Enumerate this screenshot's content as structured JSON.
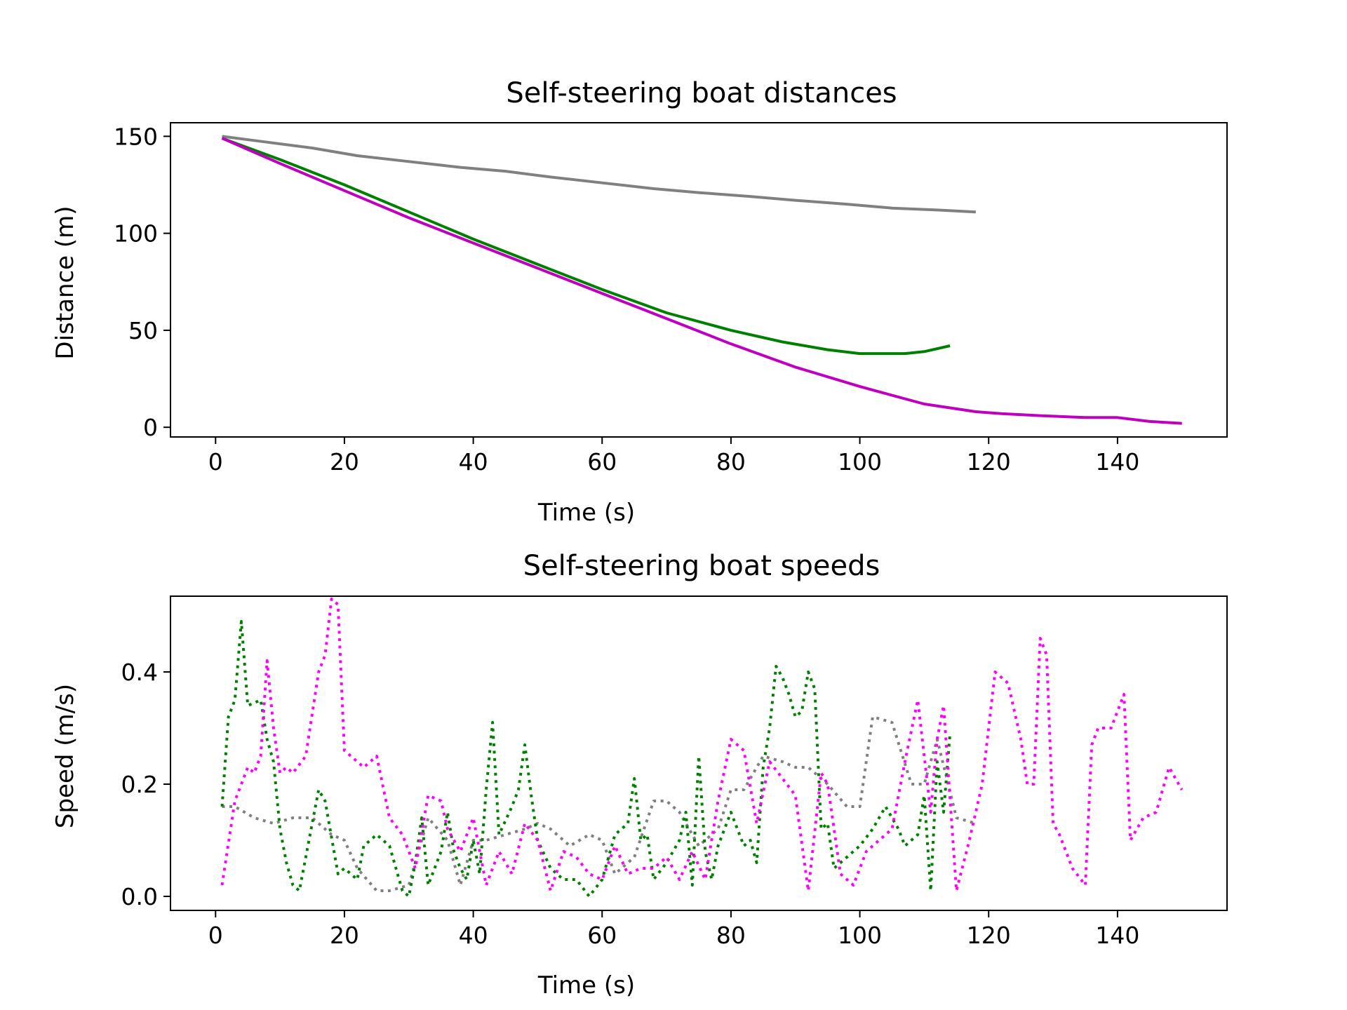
{
  "chart_data": [
    {
      "type": "line",
      "title": "Self-steering boat distances",
      "xlabel": "Time (s)",
      "ylabel": "Distance (m)",
      "xlim": [
        -7,
        157
      ],
      "ylim": [
        -5,
        157
      ],
      "xticks": [
        0,
        20,
        40,
        60,
        80,
        100,
        120,
        140
      ],
      "yticks": [
        0,
        50,
        100,
        150
      ],
      "grid": false,
      "series": [
        {
          "color": "#808080",
          "style": "solid",
          "x": [
            1,
            8,
            15,
            22,
            30,
            38,
            45,
            52,
            60,
            68,
            75,
            83,
            90,
            98,
            105,
            112,
            118
          ],
          "y": [
            150,
            147,
            144,
            140,
            137,
            134,
            132,
            129,
            126,
            123,
            121,
            119,
            117,
            115,
            113,
            112,
            111
          ]
        },
        {
          "color": "#008000",
          "style": "solid",
          "x": [
            1,
            10,
            20,
            30,
            40,
            50,
            60,
            70,
            80,
            88,
            95,
            100,
            103,
            107,
            110,
            114
          ],
          "y": [
            149,
            138,
            125,
            111,
            97,
            84,
            71,
            59,
            50,
            44,
            40,
            38,
            38,
            38,
            39,
            42
          ]
        },
        {
          "color": "#bf00bf",
          "style": "solid",
          "x": [
            1,
            10,
            20,
            30,
            40,
            50,
            60,
            70,
            80,
            90,
            100,
            110,
            118,
            122,
            128,
            135,
            140,
            145,
            150
          ],
          "y": [
            149,
            136,
            122,
            108,
            95,
            82,
            69,
            56,
            43,
            31,
            21,
            12,
            8,
            7,
            6,
            5,
            5,
            3,
            2
          ]
        }
      ]
    },
    {
      "type": "line",
      "title": "Self-steering boat speeds",
      "xlabel": "Time (s)",
      "ylabel": "Speed (m/s)",
      "xlim": [
        -7,
        157
      ],
      "ylim": [
        -0.025,
        0.535
      ],
      "xticks": [
        0,
        20,
        40,
        60,
        80,
        100,
        120,
        140
      ],
      "yticks": [
        0.0,
        0.2,
        0.4
      ],
      "ytick_labels": [
        "0.0",
        "0.2",
        "0.4"
      ],
      "grid": false,
      "series": [
        {
          "color": "#808080",
          "style": "dotted",
          "x": [
            1,
            3,
            6,
            9,
            12,
            15,
            18,
            20,
            22,
            25,
            27,
            30,
            33,
            36,
            38,
            40,
            42,
            45,
            48,
            50,
            52,
            55,
            58,
            60,
            62,
            65,
            68,
            70,
            72,
            75,
            78,
            80,
            82,
            85,
            88,
            90,
            92,
            95,
            98,
            100,
            102,
            105,
            108,
            110,
            112,
            115,
            118
          ],
          "y": [
            0.16,
            0.16,
            0.14,
            0.13,
            0.14,
            0.14,
            0.11,
            0.1,
            0.05,
            0.01,
            0.01,
            0.02,
            0.14,
            0.1,
            0.02,
            0.1,
            0.1,
            0.11,
            0.12,
            0.13,
            0.12,
            0.09,
            0.11,
            0.1,
            0.04,
            0.07,
            0.17,
            0.17,
            0.15,
            0.09,
            0.12,
            0.19,
            0.19,
            0.25,
            0.24,
            0.23,
            0.23,
            0.2,
            0.16,
            0.16,
            0.32,
            0.31,
            0.2,
            0.2,
            0.28,
            0.14,
            0.13
          ]
        },
        {
          "color": "#008000",
          "style": "dotted",
          "x": [
            1,
            2,
            3,
            4,
            5,
            7,
            8,
            9,
            10,
            11,
            12,
            13,
            15,
            16,
            17,
            19,
            20,
            22,
            23,
            25,
            27,
            29,
            30,
            31,
            32,
            33,
            35,
            36,
            37,
            38,
            39,
            40,
            41,
            42,
            43,
            44,
            46,
            47,
            48,
            49,
            50,
            52,
            54,
            56,
            58,
            60,
            62,
            64,
            65,
            66,
            67,
            68,
            70,
            72,
            73,
            74,
            75,
            76,
            77,
            78,
            80,
            82,
            83,
            84,
            85,
            86,
            87,
            88,
            89,
            90,
            91,
            92,
            93,
            94,
            95,
            96,
            97,
            99,
            100,
            102,
            104,
            106,
            107,
            108,
            109,
            110,
            111,
            112,
            113,
            114
          ],
          "y": [
            0.16,
            0.32,
            0.35,
            0.49,
            0.34,
            0.35,
            0.28,
            0.24,
            0.12,
            0.06,
            0.02,
            0.01,
            0.13,
            0.19,
            0.17,
            0.04,
            0.05,
            0.03,
            0.09,
            0.11,
            0.09,
            0.01,
            0.0,
            0.06,
            0.14,
            0.02,
            0.08,
            0.15,
            0.08,
            0.05,
            0.03,
            0.1,
            0.04,
            0.19,
            0.31,
            0.11,
            0.16,
            0.19,
            0.27,
            0.18,
            0.1,
            0.05,
            0.03,
            0.03,
            0.0,
            0.03,
            0.11,
            0.13,
            0.21,
            0.1,
            0.11,
            0.03,
            0.06,
            0.1,
            0.15,
            0.02,
            0.25,
            0.08,
            0.03,
            0.09,
            0.15,
            0.09,
            0.1,
            0.06,
            0.23,
            0.3,
            0.41,
            0.39,
            0.36,
            0.32,
            0.33,
            0.4,
            0.37,
            0.12,
            0.13,
            0.05,
            0.06,
            0.08,
            0.09,
            0.12,
            0.16,
            0.12,
            0.09,
            0.1,
            0.11,
            0.18,
            0.01,
            0.24,
            0.15,
            0.29
          ]
        },
        {
          "color": "#ff00ff",
          "style": "dotted",
          "x": [
            1,
            3,
            5,
            6,
            7,
            8,
            9,
            10,
            11,
            12,
            14,
            16,
            17,
            18,
            19,
            20,
            21,
            23,
            25,
            27,
            29,
            31,
            33,
            35,
            36,
            38,
            40,
            42,
            44,
            46,
            48,
            50,
            52,
            54,
            56,
            58,
            60,
            62,
            64,
            66,
            68,
            70,
            72,
            74,
            76,
            78,
            80,
            82,
            84,
            86,
            88,
            90,
            92,
            94,
            95,
            97,
            99,
            101,
            103,
            105,
            107,
            109,
            111,
            112,
            113,
            115,
            117,
            119,
            121,
            123,
            125,
            126,
            127,
            128,
            129,
            130,
            131,
            133,
            135,
            136,
            137,
            139,
            140,
            141,
            142,
            144,
            146,
            148,
            150
          ],
          "y": [
            0.02,
            0.17,
            0.23,
            0.22,
            0.25,
            0.42,
            0.3,
            0.22,
            0.23,
            0.22,
            0.25,
            0.4,
            0.43,
            0.53,
            0.52,
            0.26,
            0.25,
            0.23,
            0.25,
            0.14,
            0.11,
            0.05,
            0.18,
            0.17,
            0.12,
            0.08,
            0.14,
            0.02,
            0.08,
            0.04,
            0.13,
            0.1,
            0.01,
            0.08,
            0.07,
            0.04,
            0.03,
            0.09,
            0.04,
            0.05,
            0.05,
            0.07,
            0.03,
            0.08,
            0.03,
            0.17,
            0.28,
            0.26,
            0.13,
            0.24,
            0.21,
            0.18,
            0.01,
            0.22,
            0.2,
            0.04,
            0.02,
            0.08,
            0.1,
            0.12,
            0.24,
            0.35,
            0.15,
            0.28,
            0.34,
            0.01,
            0.1,
            0.2,
            0.4,
            0.38,
            0.28,
            0.2,
            0.2,
            0.46,
            0.43,
            0.13,
            0.11,
            0.05,
            0.02,
            0.27,
            0.3,
            0.3,
            0.33,
            0.36,
            0.1,
            0.14,
            0.15,
            0.23,
            0.19
          ]
        }
      ]
    }
  ]
}
